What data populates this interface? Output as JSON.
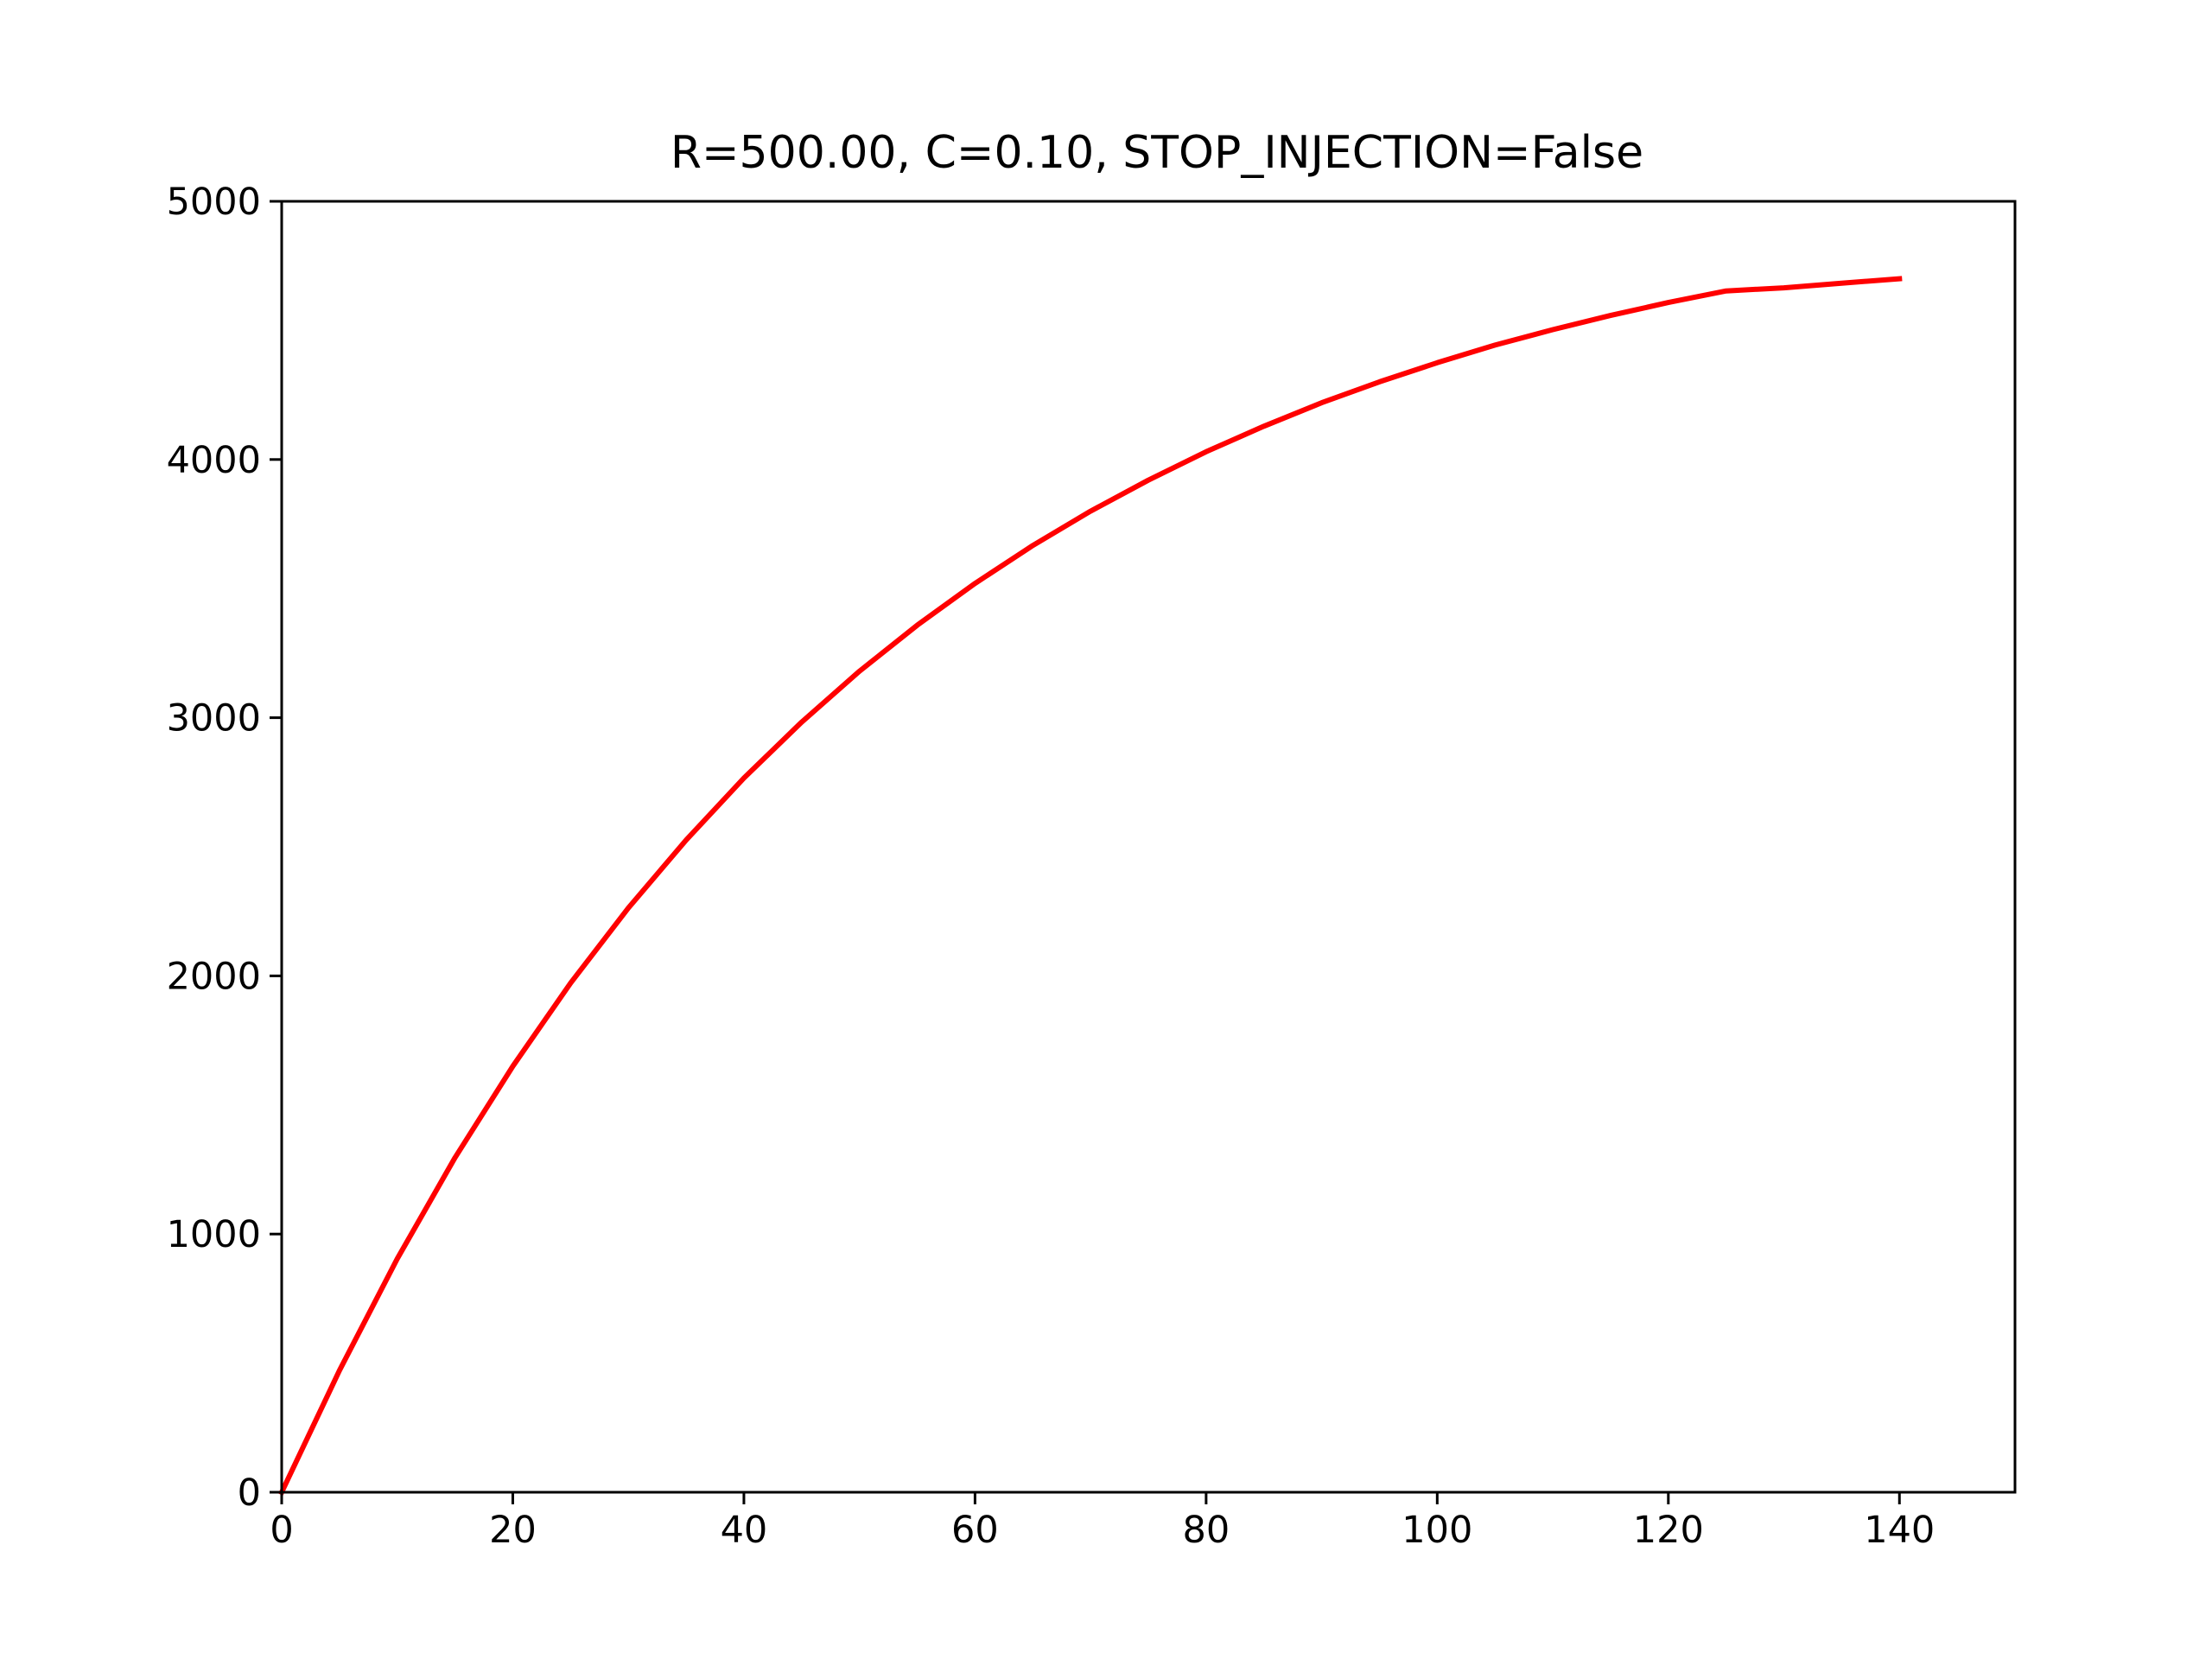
{
  "chart_data": {
    "type": "line",
    "title": "R=500.00, C=0.10, STOP_INJECTION=False",
    "xlabel": "",
    "ylabel": "",
    "xlim": [
      0,
      150
    ],
    "ylim": [
      0,
      5000
    ],
    "x_ticks": [
      "0",
      "20",
      "40",
      "60",
      "80",
      "100",
      "120",
      "140"
    ],
    "y_ticks": [
      "0",
      "1000",
      "2000",
      "3000",
      "4000",
      "5000"
    ],
    "grid": false,
    "legend": "none",
    "series": [
      {
        "color": "#ff0000",
        "x": [
          0,
          5,
          10,
          15,
          20,
          25,
          30,
          35,
          40,
          45,
          50,
          55,
          60,
          65,
          70,
          75,
          80,
          85,
          90,
          95,
          100,
          105,
          110,
          115,
          120,
          125,
          130,
          135,
          140
        ],
        "y": [
          0,
          472,
          904,
          1296,
          1650,
          1972,
          2263,
          2526,
          2766,
          2983,
          3180,
          3358,
          3520,
          3667,
          3800,
          3920,
          4030,
          4129,
          4220,
          4301,
          4375,
          4443,
          4503,
          4558,
          4608,
          4653,
          4665,
          4683,
          4700
        ]
      }
    ]
  }
}
